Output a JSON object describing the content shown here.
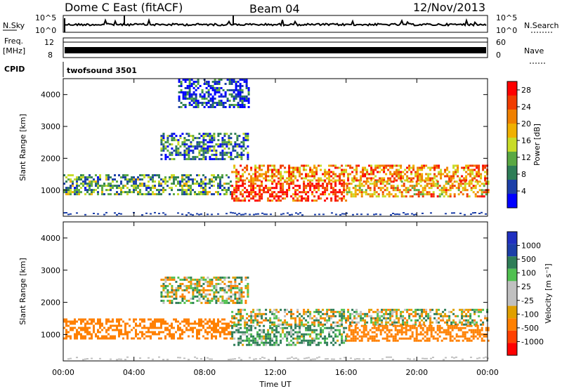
{
  "header": {
    "station": "Dome C East (fitACF)",
    "beam": "Beam 04",
    "date": "12/Nov/2013"
  },
  "top_panels": {
    "nsky_label": "N.Sky",
    "nsearch_label": "N.Search",
    "noise_ticks": [
      "10^5",
      "10^0"
    ],
    "freq_label_line1": "Freq.",
    "freq_label_line2": "[MHz]",
    "freq_ticks": [
      "12",
      "8"
    ],
    "nave_label": "Nave",
    "nave_ticks": [
      "60",
      "0"
    ],
    "cpid_label": "CPID",
    "cpid_value": "twofsound 3501"
  },
  "colors": {
    "power_scale": [
      "#0000ff",
      "#1c3fa8",
      "#2e7d57",
      "#5aa843",
      "#c8dc28",
      "#f0b000",
      "#f08000",
      "#f03c00",
      "#ff0000"
    ],
    "velocity_scale": [
      "#ff0000",
      "#ff4000",
      "#ff8000",
      "#e0a000",
      "#c0c0c0",
      "#c0c0c0",
      "#50c050",
      "#2e7d57",
      "#1c3fa8",
      "#2030c0"
    ]
  },
  "chart_data": [
    {
      "type": "heatmap",
      "name": "power",
      "ylabel": "Slant Range [km]",
      "xlabel": "",
      "x_ticks": [
        "00:00",
        "04:00",
        "08:00",
        "12:00",
        "16:00",
        "20:00",
        "00:00"
      ],
      "xlim_hours": [
        0,
        24
      ],
      "y_ticks": [
        1000,
        2000,
        3000,
        4000
      ],
      "ylim": [
        180,
        4500
      ],
      "colorbar": {
        "label": "Power [dB]",
        "ticks": [
          4,
          8,
          12,
          16,
          20,
          24,
          28
        ],
        "range": [
          0,
          30
        ]
      },
      "echo_regions": [
        {
          "t0": 0.0,
          "t1": 9.5,
          "r0": 900,
          "r1": 1500,
          "intensity": 0.35
        },
        {
          "t0": 9.5,
          "t1": 16.0,
          "r0": 700,
          "r1": 1300,
          "intensity": 0.85
        },
        {
          "t0": 9.5,
          "t1": 24.0,
          "r0": 1300,
          "r1": 1800,
          "intensity": 0.7
        },
        {
          "t0": 16.0,
          "t1": 24.0,
          "r0": 800,
          "r1": 1300,
          "intensity": 0.65
        },
        {
          "t0": 5.5,
          "t1": 10.5,
          "r0": 2000,
          "r1": 2800,
          "intensity": 0.25
        },
        {
          "t0": 6.5,
          "t1": 10.5,
          "r0": 3600,
          "r1": 4500,
          "intensity": 0.15
        }
      ]
    },
    {
      "type": "heatmap",
      "name": "velocity",
      "ylabel": "Slant Range [km]",
      "xlabel": "Time UT",
      "x_ticks": [
        "00:00",
        "04:00",
        "08:00",
        "12:00",
        "16:00",
        "20:00",
        "00:00"
      ],
      "xlim_hours": [
        0,
        24
      ],
      "y_ticks": [
        1000,
        2000,
        3000,
        4000
      ],
      "ylim": [
        180,
        4500
      ],
      "colorbar": {
        "label": "Velocity [m s⁻¹]",
        "ticks": [
          1000,
          500,
          100,
          25,
          -25,
          -100,
          -500,
          -1000
        ]
      },
      "echo_regions": [
        {
          "t0": 0.0,
          "t1": 9.5,
          "r0": 900,
          "r1": 1500,
          "velocity": -300
        },
        {
          "t0": 9.5,
          "t1": 16.0,
          "r0": 700,
          "r1": 1300,
          "velocity": 150
        },
        {
          "t0": 9.5,
          "t1": 24.0,
          "r0": 1300,
          "r1": 1800,
          "velocity": 0
        },
        {
          "t0": 16.0,
          "t1": 24.0,
          "r0": 800,
          "r1": 1300,
          "velocity": -300
        },
        {
          "t0": 5.5,
          "t1": 10.5,
          "r0": 2000,
          "r1": 2800,
          "velocity": 0
        }
      ]
    }
  ]
}
